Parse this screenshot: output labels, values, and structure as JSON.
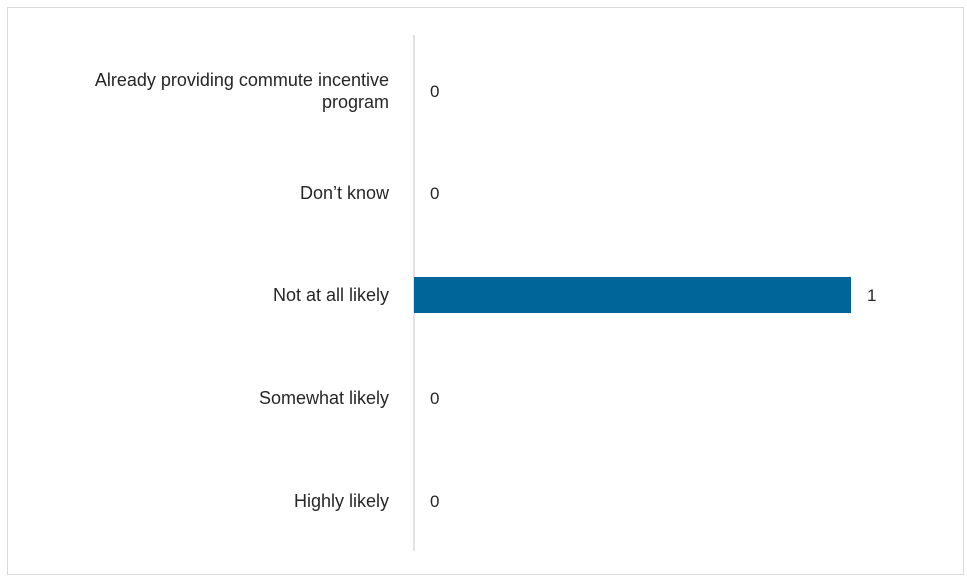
{
  "chart_data": {
    "type": "bar",
    "orientation": "horizontal",
    "categories": [
      "Already providing commute incentive program",
      "Don’t know",
      "Not at all likely",
      "Somewhat likely",
      "Highly likely"
    ],
    "category_label_lines": [
      [
        "Already providing commute incentive",
        "program"
      ],
      [
        "Don’t know"
      ],
      [
        "Not at all likely"
      ],
      [
        "Somewhat likely"
      ],
      [
        "Highly likely"
      ]
    ],
    "values": [
      0,
      0,
      1,
      0,
      0
    ],
    "data_labels": [
      "0",
      "0",
      "1",
      "0",
      "0"
    ],
    "title": "",
    "xlabel": "",
    "ylabel": "",
    "xlim": [
      0,
      1
    ],
    "grid": false,
    "legend": "none",
    "colors": {
      "bar": "#006699",
      "axis": "#d9d9d9",
      "frame": "#d9d9d9",
      "text": "#262626"
    }
  }
}
